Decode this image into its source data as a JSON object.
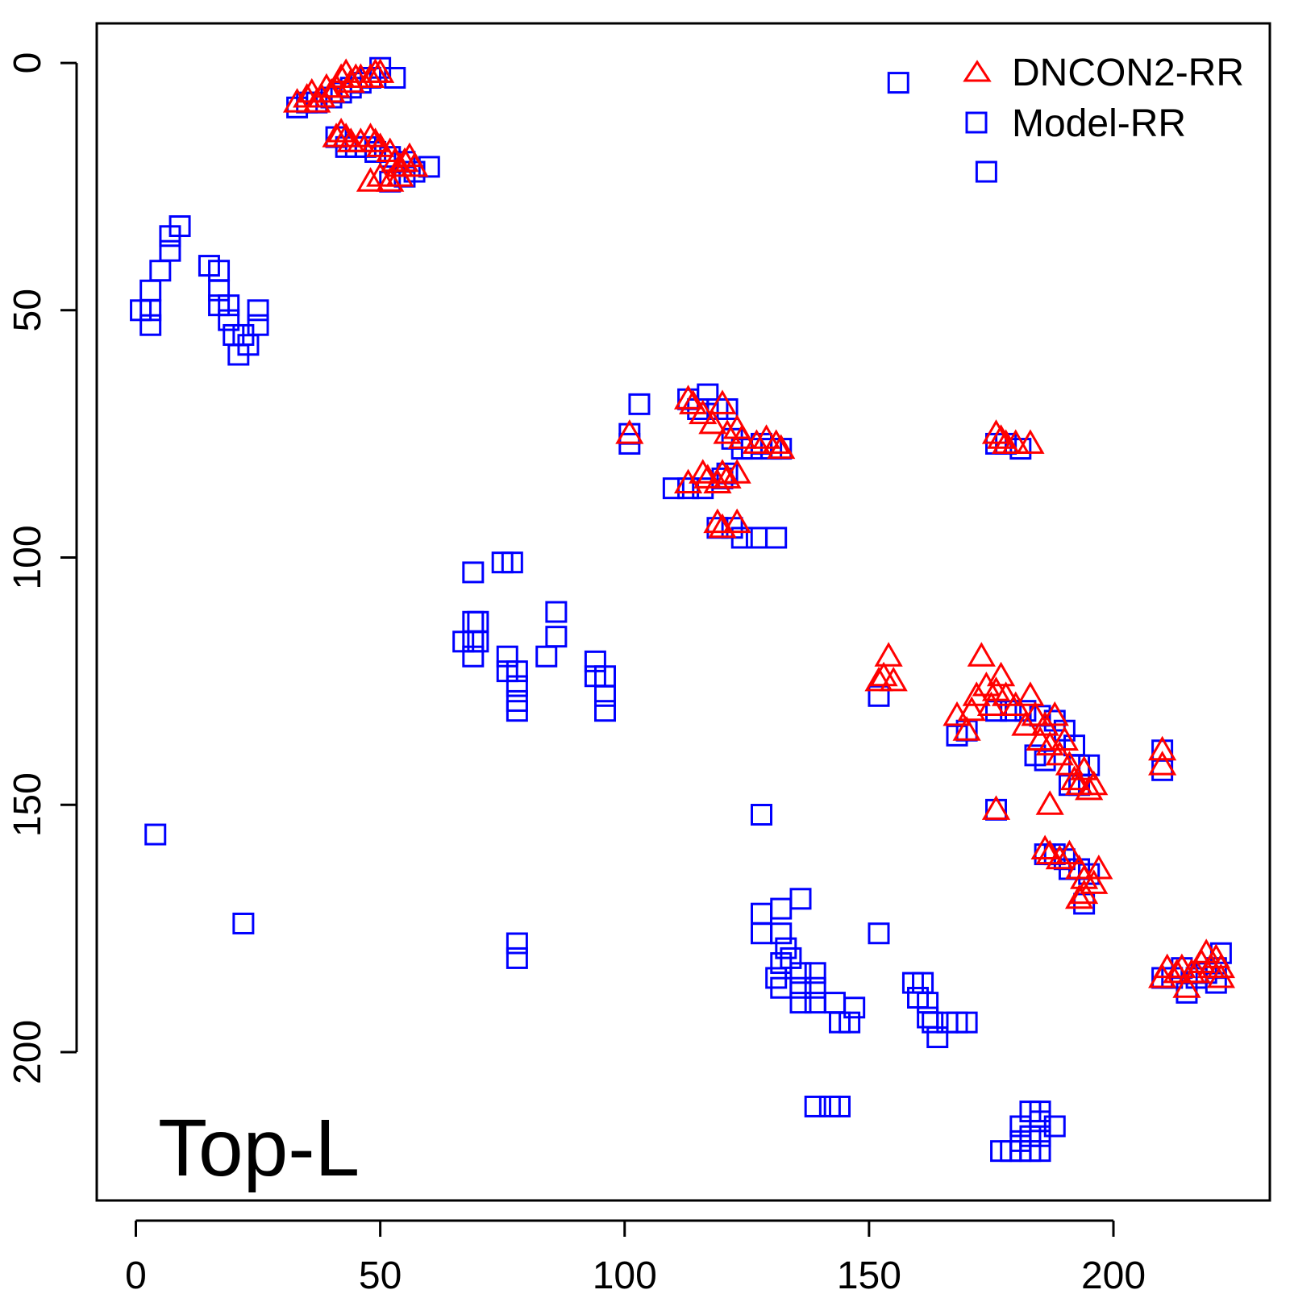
{
  "chart_data": {
    "type": "scatter",
    "title": "",
    "xlabel": "",
    "ylabel": "",
    "annotation": "Top-L",
    "xlim": [
      -8,
      232
    ],
    "ylim": [
      -8,
      230
    ],
    "y_reversed": true,
    "x_ticks": [
      0,
      50,
      100,
      150,
      200
    ],
    "x_tick_labels": [
      "0",
      "50",
      "100",
      "150",
      "200"
    ],
    "y_ticks": [
      0,
      50,
      100,
      150,
      200
    ],
    "y_tick_labels": [
      "0",
      "50",
      "100",
      "150",
      "200"
    ],
    "grid": false,
    "legend_position": "top-right",
    "series": [
      {
        "name": "DNCON2-RR",
        "marker": "triangle",
        "color": "#ff0000",
        "points": [
          [
            33,
            8
          ],
          [
            35,
            7
          ],
          [
            36,
            6
          ],
          [
            37,
            8
          ],
          [
            38,
            7
          ],
          [
            39,
            5
          ],
          [
            40,
            6
          ],
          [
            41,
            5
          ],
          [
            42,
            3
          ],
          [
            43,
            2
          ],
          [
            44,
            4
          ],
          [
            45,
            3
          ],
          [
            46,
            3
          ],
          [
            48,
            3
          ],
          [
            49,
            2
          ],
          [
            50,
            2
          ],
          [
            41,
            15
          ],
          [
            42,
            14
          ],
          [
            43,
            15
          ],
          [
            44,
            16
          ],
          [
            46,
            16
          ],
          [
            48,
            15
          ],
          [
            49,
            16
          ],
          [
            50,
            17
          ],
          [
            52,
            18
          ],
          [
            53,
            20
          ],
          [
            54,
            21
          ],
          [
            55,
            20
          ],
          [
            56,
            19
          ],
          [
            57,
            21
          ],
          [
            48,
            24
          ],
          [
            50,
            23
          ],
          [
            52,
            24
          ],
          [
            54,
            23
          ],
          [
            101,
            75
          ],
          [
            113,
            68
          ],
          [
            114,
            69
          ],
          [
            116,
            71
          ],
          [
            118,
            73
          ],
          [
            120,
            69
          ],
          [
            121,
            75
          ],
          [
            123,
            74
          ],
          [
            124,
            76
          ],
          [
            127,
            77
          ],
          [
            129,
            76
          ],
          [
            131,
            77
          ],
          [
            132,
            78
          ],
          [
            113,
            85
          ],
          [
            116,
            83
          ],
          [
            117,
            84
          ],
          [
            119,
            85
          ],
          [
            120,
            83
          ],
          [
            121,
            84
          ],
          [
            123,
            83
          ],
          [
            119,
            93
          ],
          [
            120,
            94
          ],
          [
            123,
            93
          ],
          [
            176,
            75
          ],
          [
            177,
            76
          ],
          [
            178,
            77
          ],
          [
            180,
            77
          ],
          [
            183,
            77
          ],
          [
            152,
            125
          ],
          [
            153,
            124
          ],
          [
            154,
            120
          ],
          [
            155,
            125
          ],
          [
            168,
            132
          ],
          [
            170,
            135
          ],
          [
            171,
            131
          ],
          [
            172,
            128
          ],
          [
            173,
            120
          ],
          [
            174,
            126
          ],
          [
            175,
            130
          ],
          [
            176,
            127
          ],
          [
            177,
            124
          ],
          [
            178,
            128
          ],
          [
            180,
            130
          ],
          [
            182,
            134
          ],
          [
            183,
            128
          ],
          [
            184,
            132
          ],
          [
            185,
            137
          ],
          [
            186,
            134
          ],
          [
            187,
            138
          ],
          [
            188,
            132
          ],
          [
            189,
            140
          ],
          [
            190,
            137
          ],
          [
            191,
            142
          ],
          [
            192,
            145
          ],
          [
            193,
            146
          ],
          [
            194,
            143
          ],
          [
            195,
            147
          ],
          [
            196,
            146
          ],
          [
            176,
            151
          ],
          [
            187,
            150
          ],
          [
            186,
            159
          ],
          [
            187,
            160
          ],
          [
            189,
            161
          ],
          [
            191,
            160
          ],
          [
            193,
            163
          ],
          [
            194,
            165
          ],
          [
            196,
            166
          ],
          [
            197,
            163
          ],
          [
            193,
            169
          ],
          [
            194,
            168
          ],
          [
            210,
            139
          ],
          [
            210,
            142
          ],
          [
            210,
            185
          ],
          [
            211,
            183
          ],
          [
            213,
            184
          ],
          [
            214,
            183
          ],
          [
            215,
            187
          ],
          [
            216,
            184
          ],
          [
            217,
            184
          ],
          [
            218,
            182
          ],
          [
            219,
            180
          ],
          [
            220,
            183
          ],
          [
            221,
            181
          ],
          [
            222,
            183
          ],
          [
            222,
            185
          ]
        ]
      },
      {
        "name": "Model-RR",
        "marker": "square",
        "color": "#0000ff",
        "points": [
          [
            33,
            9
          ],
          [
            35,
            8
          ],
          [
            37,
            8
          ],
          [
            40,
            7
          ],
          [
            42,
            6
          ],
          [
            44,
            5
          ],
          [
            46,
            4
          ],
          [
            48,
            3
          ],
          [
            50,
            1
          ],
          [
            53,
            3
          ],
          [
            41,
            15
          ],
          [
            43,
            17
          ],
          [
            45,
            17
          ],
          [
            47,
            17
          ],
          [
            49,
            18
          ],
          [
            52,
            19
          ],
          [
            55,
            20
          ],
          [
            57,
            22
          ],
          [
            60,
            21
          ],
          [
            52,
            24
          ],
          [
            55,
            23
          ],
          [
            156,
            4
          ],
          [
            174,
            22
          ],
          [
            9,
            33
          ],
          [
            7,
            35
          ],
          [
            7,
            38
          ],
          [
            5,
            42
          ],
          [
            3,
            46
          ],
          [
            1,
            50
          ],
          [
            3,
            50
          ],
          [
            3,
            53
          ],
          [
            15,
            41
          ],
          [
            17,
            42
          ],
          [
            17,
            46
          ],
          [
            17,
            49
          ],
          [
            19,
            49
          ],
          [
            19,
            52
          ],
          [
            20,
            55
          ],
          [
            22,
            55
          ],
          [
            21,
            59
          ],
          [
            23,
            57
          ],
          [
            25,
            50
          ],
          [
            25,
            53
          ],
          [
            103,
            69
          ],
          [
            101,
            75
          ],
          [
            101,
            77
          ],
          [
            113,
            68
          ],
          [
            115,
            70
          ],
          [
            117,
            67
          ],
          [
            119,
            70
          ],
          [
            121,
            70
          ],
          [
            122,
            76
          ],
          [
            124,
            78
          ],
          [
            126,
            78
          ],
          [
            128,
            77
          ],
          [
            130,
            78
          ],
          [
            132,
            78
          ],
          [
            110,
            86
          ],
          [
            113,
            86
          ],
          [
            116,
            86
          ],
          [
            120,
            84
          ],
          [
            121,
            83
          ],
          [
            119,
            94
          ],
          [
            122,
            94
          ],
          [
            124,
            96
          ],
          [
            127,
            96
          ],
          [
            131,
            96
          ],
          [
            176,
            77
          ],
          [
            178,
            77
          ],
          [
            181,
            78
          ],
          [
            69,
            103
          ],
          [
            75,
            101
          ],
          [
            77,
            101
          ],
          [
            86,
            111
          ],
          [
            86,
            116
          ],
          [
            67,
            117
          ],
          [
            69,
            113
          ],
          [
            69,
            117
          ],
          [
            69,
            120
          ],
          [
            70,
            113
          ],
          [
            70,
            117
          ],
          [
            76,
            120
          ],
          [
            76,
            123
          ],
          [
            78,
            123
          ],
          [
            78,
            126
          ],
          [
            78,
            129
          ],
          [
            78,
            131
          ],
          [
            84,
            120
          ],
          [
            94,
            121
          ],
          [
            94,
            124
          ],
          [
            96,
            124
          ],
          [
            96,
            128
          ],
          [
            96,
            131
          ],
          [
            4,
            156
          ],
          [
            22,
            174
          ],
          [
            128,
            152
          ],
          [
            78,
            178
          ],
          [
            78,
            181
          ],
          [
            152,
            128
          ],
          [
            168,
            136
          ],
          [
            170,
            135
          ],
          [
            176,
            131
          ],
          [
            179,
            131
          ],
          [
            182,
            131
          ],
          [
            185,
            132
          ],
          [
            188,
            133
          ],
          [
            190,
            135
          ],
          [
            192,
            138
          ],
          [
            193,
            142
          ],
          [
            195,
            142
          ],
          [
            191,
            146
          ],
          [
            193,
            146
          ],
          [
            184,
            140
          ],
          [
            186,
            141
          ],
          [
            176,
            151
          ],
          [
            186,
            160
          ],
          [
            188,
            160
          ],
          [
            190,
            161
          ],
          [
            191,
            163
          ],
          [
            193,
            163
          ],
          [
            195,
            164
          ],
          [
            194,
            170
          ],
          [
            210,
            139
          ],
          [
            210,
            143
          ],
          [
            210,
            185
          ],
          [
            212,
            185
          ],
          [
            214,
            183
          ],
          [
            215,
            188
          ],
          [
            217,
            185
          ],
          [
            219,
            184
          ],
          [
            221,
            183
          ],
          [
            222,
            180
          ],
          [
            221,
            186
          ],
          [
            128,
            172
          ],
          [
            128,
            176
          ],
          [
            132,
            171
          ],
          [
            132,
            176
          ],
          [
            133,
            179
          ],
          [
            132,
            182
          ],
          [
            131,
            185
          ],
          [
            132,
            187
          ],
          [
            136,
            169
          ],
          [
            134,
            181
          ],
          [
            136,
            184
          ],
          [
            136,
            187
          ],
          [
            136,
            190
          ],
          [
            139,
            184
          ],
          [
            139,
            187
          ],
          [
            139,
            190
          ],
          [
            143,
            190
          ],
          [
            144,
            194
          ],
          [
            146,
            194
          ],
          [
            147,
            191
          ],
          [
            152,
            176
          ],
          [
            159,
            186
          ],
          [
            161,
            186
          ],
          [
            160,
            189
          ],
          [
            162,
            190
          ],
          [
            162,
            193
          ],
          [
            163,
            194
          ],
          [
            164,
            197
          ],
          [
            166,
            194
          ],
          [
            168,
            194
          ],
          [
            170,
            194
          ],
          [
            139,
            211
          ],
          [
            142,
            211
          ],
          [
            144,
            211
          ],
          [
            177,
            220
          ],
          [
            179,
            220
          ],
          [
            181,
            220
          ],
          [
            183,
            220
          ],
          [
            185,
            220
          ],
          [
            181,
            215
          ],
          [
            183,
            217
          ],
          [
            185,
            217
          ],
          [
            185,
            214
          ],
          [
            185,
            212
          ],
          [
            183,
            212
          ],
          [
            188,
            215
          ],
          [
            181,
            218
          ]
        ]
      }
    ]
  }
}
